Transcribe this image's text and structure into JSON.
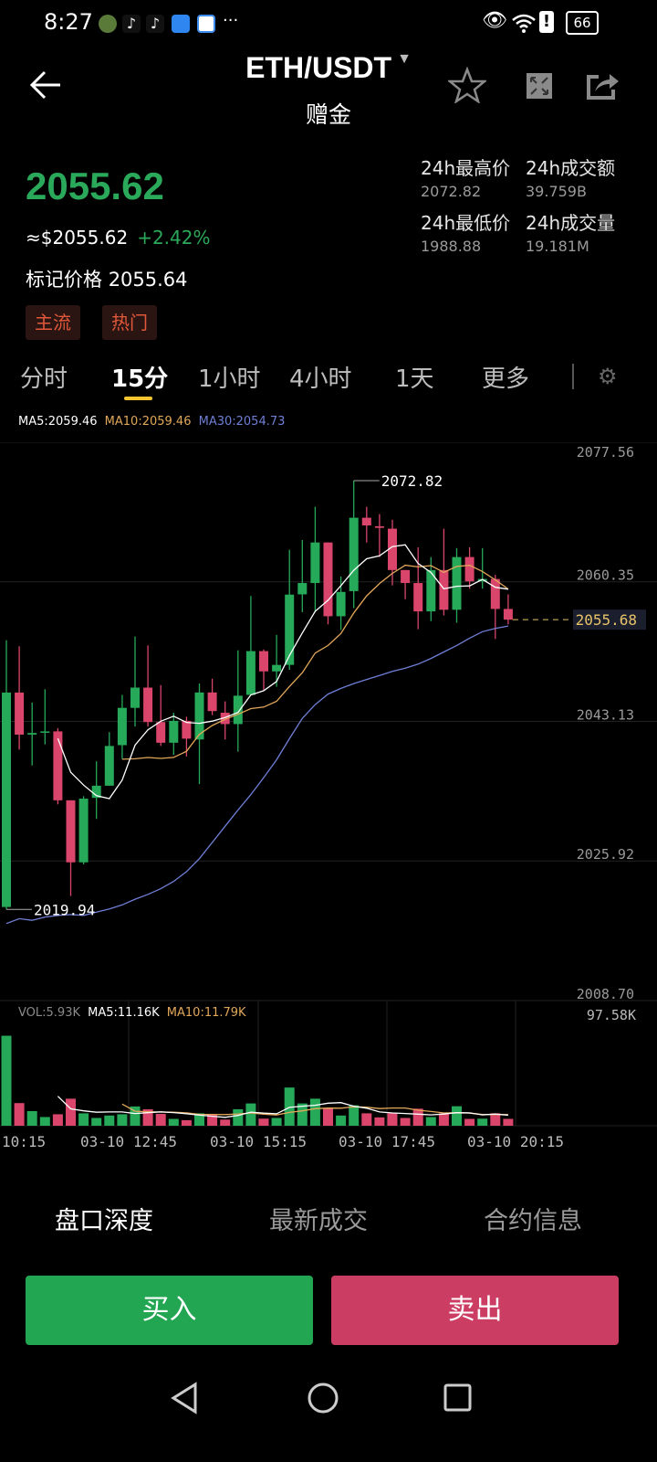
{
  "status_bar": {
    "time": "8:27",
    "more": "···",
    "battery": "66",
    "icons": [
      "avatar-app-icon",
      "tiktok-icon",
      "tiktok-icon",
      "cloud-icon",
      "browser-icon",
      "eye-icon",
      "wifi-icon",
      "alert-icon",
      "battery-icon"
    ]
  },
  "header": {
    "title": "ETH/USDT",
    "subtitle": "赠金",
    "icons": [
      "back-arrow-icon",
      "caret-down-icon",
      "star-icon",
      "fullscreen-icon",
      "share-icon"
    ]
  },
  "ticker": {
    "price": "2055.62",
    "usd_price": "≈$2055.62",
    "change": "+2.42%",
    "mark_price_label": "标记价格",
    "mark_price": "2055.64",
    "tags": [
      "主流",
      "热门"
    ],
    "stats": [
      {
        "label": "24h最高价",
        "value": "2072.82"
      },
      {
        "label": "24h成交额",
        "value": "39.759B"
      },
      {
        "label": "24h最低价",
        "value": "1988.88"
      },
      {
        "label": "24h成交量",
        "value": "19.181M"
      }
    ]
  },
  "interval_tabs": [
    {
      "label": "分时"
    },
    {
      "label": "15分",
      "active": true
    },
    {
      "label": "1小时"
    },
    {
      "label": "4小时"
    },
    {
      "label": "1天"
    },
    {
      "label": "更多"
    }
  ],
  "ma_legend": {
    "ma5": "MA5:2059.46",
    "ma10": "MA10:2059.46",
    "ma30": "MA30:2054.73"
  },
  "vol_legend": {
    "vol": "VOL:5.93K",
    "ma5": "MA5:11.16K",
    "ma10": "MA10:11.79K"
  },
  "colors": {
    "up": "#27a95a",
    "down": "#d9456b",
    "ma5": "#ffffff",
    "ma10": "#e2a85a",
    "ma30": "#6f7fd6",
    "accent": "#f5c531",
    "current_price": "#e8c36a"
  },
  "chart_data": {
    "type": "candlestick",
    "interval": "15分",
    "y_ticks": [
      "2077.56",
      "2060.35",
      "2043.13",
      "2025.92",
      "2008.70"
    ],
    "ylim": [
      2008.7,
      2077.56
    ],
    "x_ticks": [
      "10:15",
      "03-10 12:45",
      "03-10 15:15",
      "03-10 17:45",
      "03-10 20:15"
    ],
    "high_label": "2072.82",
    "low_label": "2019.94",
    "current_price": "2055.68",
    "vol_max_label": "97.58K",
    "candles": [
      [
        2020.24,
        2053.15,
        2019.94,
        2046.69
      ],
      [
        2046.69,
        2052.4,
        2039.65,
        2041.5
      ],
      [
        2041.5,
        2045.46,
        2037.7,
        2041.7
      ],
      [
        2041.78,
        2047.1,
        2040.3,
        2041.9
      ],
      [
        2041.9,
        2042.3,
        2032.9,
        2033.4
      ],
      [
        2033.4,
        2033.4,
        2021.6,
        2025.75
      ],
      [
        2025.75,
        2033.9,
        2025.5,
        2033.6
      ],
      [
        2033.7,
        2038.2,
        2031.1,
        2035.2
      ],
      [
        2035.2,
        2041.8,
        2035.2,
        2040.1
      ],
      [
        2040.2,
        2046.4,
        2038.5,
        2044.8
      ],
      [
        2044.8,
        2053.6,
        2042.5,
        2047.3
      ],
      [
        2047.3,
        2052.5,
        2042.5,
        2043.05
      ],
      [
        2043.05,
        2047.6,
        2040.1,
        2040.5
      ],
      [
        2040.5,
        2044.2,
        2039.0,
        2043.2
      ],
      [
        2043.2,
        2043.7,
        2038.8,
        2041.0
      ],
      [
        2040.9,
        2047.8,
        2035.4,
        2046.7
      ],
      [
        2046.7,
        2048.4,
        2043.9,
        2044.4
      ],
      [
        2044.2,
        2045.6,
        2040.9,
        2042.8
      ],
      [
        2042.8,
        2051.9,
        2039.4,
        2046.3
      ],
      [
        2046.4,
        2058.6,
        2046.4,
        2051.8
      ],
      [
        2051.8,
        2052.0,
        2047.0,
        2049.3
      ],
      [
        2049.3,
        2053.8,
        2047.4,
        2050.1
      ],
      [
        2050.1,
        2064.3,
        2049.5,
        2058.77
      ],
      [
        2058.8,
        2065.5,
        2056.6,
        2060.2
      ],
      [
        2060.2,
        2069.6,
        2056.6,
        2065.2
      ],
      [
        2065.2,
        2065.2,
        2055.1,
        2056.1
      ],
      [
        2056.1,
        2061.0,
        2054.4,
        2059.1
      ],
      [
        2059.2,
        2072.82,
        2057.1,
        2068.25
      ],
      [
        2068.25,
        2069.6,
        2065.2,
        2067.3
      ],
      [
        2067.2,
        2068.7,
        2063.4,
        2067.0
      ],
      [
        2066.9,
        2068.0,
        2059.9,
        2061.8
      ],
      [
        2061.8,
        2061.8,
        2058.2,
        2060.2
      ],
      [
        2060.2,
        2064.6,
        2054.5,
        2056.7
      ],
      [
        2056.7,
        2063.4,
        2055.5,
        2061.8
      ],
      [
        2061.8,
        2066.9,
        2056.2,
        2056.9
      ],
      [
        2056.9,
        2064.5,
        2055.3,
        2063.4
      ],
      [
        2063.4,
        2064.6,
        2059.5,
        2060.4
      ],
      [
        2060.4,
        2064.5,
        2059.5,
        2060.7
      ],
      [
        2060.7,
        2061.2,
        2053.3,
        2057.0
      ],
      [
        2057.0,
        2058.8,
        2055.1,
        2055.68
      ]
    ],
    "ma30": [
      2018.2,
      2018.8,
      2018.6,
      2019.0,
      2019.2,
      2019.3,
      2019.2,
      2019.6,
      2020.0,
      2020.5,
      2021.2,
      2021.8,
      2022.5,
      2023.4,
      2024.6,
      2026.2,
      2028.2,
      2030.2,
      2032.2,
      2034.1,
      2036.2,
      2038.4,
      2041.0,
      2043.5,
      2045.2,
      2046.5,
      2047.2,
      2047.8,
      2048.3,
      2048.8,
      2049.3,
      2049.7,
      2050.2,
      2050.9,
      2051.7,
      2052.5,
      2053.4,
      2054.2,
      2054.6,
      2054.9
    ],
    "volume_k": [
      77.5,
      19.5,
      12.6,
      7.5,
      9.9,
      23.3,
      10.7,
      6.7,
      8.8,
      9.9,
      16.6,
      14.2,
      10.2,
      5.9,
      4.8,
      10.7,
      9.4,
      5.3,
      14.2,
      19.2,
      6.1,
      6.7,
      32.9,
      19.2,
      23.3,
      15.2,
      8.8,
      17.6,
      10.7,
      7.2,
      10.7,
      6.7,
      14.7,
      7.5,
      10.7,
      16.8,
      5.9,
      6.1,
      10.7,
      5.93
    ]
  },
  "bottom_tabs": [
    {
      "label": "盘口深度",
      "active": true
    },
    {
      "label": "最新成交"
    },
    {
      "label": "合约信息"
    }
  ],
  "actions": {
    "buy": "买入",
    "sell": "卖出"
  },
  "nav_bar": [
    "back-triangle-icon",
    "home-circle-icon",
    "recents-square-icon"
  ]
}
